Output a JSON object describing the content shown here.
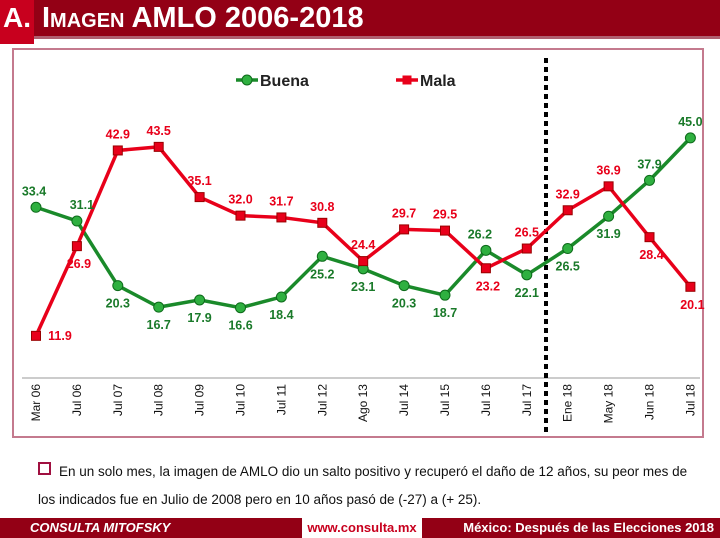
{
  "header": {
    "letter": "A.",
    "title": "Imagen AMLO 2006-2018"
  },
  "chart_data": {
    "type": "line",
    "categories": [
      "Mar 06",
      "Jul 06",
      "Jul 07",
      "Jul 08",
      "Jul 09",
      "Jul 10",
      "Jul 11",
      "Jul 12",
      "Ago 13",
      "Jul 14",
      "Jul 15",
      "Jul 16",
      "Jul 17",
      "Ene 18",
      "May 18",
      "Jun 18",
      "Jul 18"
    ],
    "series": [
      {
        "name": "Buena",
        "color": "#1a8a2a",
        "marker": "circle",
        "values": [
          33.4,
          31.1,
          20.3,
          16.7,
          17.9,
          16.6,
          18.4,
          25.2,
          23.1,
          20.3,
          18.7,
          26.2,
          22.1,
          26.5,
          31.9,
          37.9,
          45.0
        ]
      },
      {
        "name": "Mala",
        "color": "#e8001a",
        "marker": "square",
        "values": [
          11.9,
          26.9,
          42.9,
          43.5,
          35.1,
          32.0,
          31.7,
          30.8,
          24.4,
          29.7,
          29.5,
          23.2,
          26.5,
          32.9,
          36.9,
          28.4,
          20.1
        ]
      }
    ],
    "legend": "top-center",
    "grid": false,
    "annotation": "dashed vertical divider between Jul 17 and Ene 18"
  },
  "note": "En un solo mes, la imagen de AMLO dio un salto positivo y recuperó el daño de 12 años, su peor mes de los indicados fue en Julio de 2008 pero en 10 años pasó de (-27) a (+ 25).",
  "footer": {
    "brand": "CONSULTA MITOFSKY",
    "url": "www.consulta.mx",
    "event": "México: Después de las Elecciones 2018"
  }
}
